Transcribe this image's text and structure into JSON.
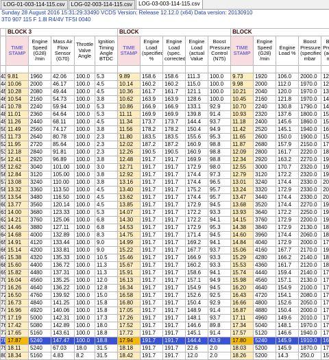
{
  "tabs": [
    "LOG-01-003-114-115.csv",
    "LOG-02-003-114-115.csv",
    "LOG-03-003-114-115.csv"
  ],
  "active_tab": 2,
  "info_line1": "Sunday 28 August 2016 15:31:29:33490 VCDS Version: Release 12.12.0 (x64) Data version: 20130910",
  "info_line2": "3T0 907 115 F   1.8l R4/4V TFSI      0040",
  "groups": [
    "BLOCK 3",
    "BLOCK",
    "BLOCK"
  ],
  "headers": [
    "TIME STAMP",
    "Engine Speed (G28) /min",
    "Mass Air Flow Sensor (G70)",
    "Throttle Valve Angle",
    "Ignition Timing Angle BTDC",
    "TIME STAMP",
    "Engine Load (specified %",
    "Engine Load (spec. corrected",
    "Engine Load (actual Value",
    "Boost Pressure Control (N75)",
    "TIME STAMP",
    "Engine Speed (G28) /min",
    "Engine Load %",
    "Boost Pressure (specified mbar",
    "Boost Pressure (actual) mbar"
  ],
  "units": [
    "",
    "",
    "",
    "",
    "",
    "",
    "",
    "",
    "",
    "",
    "",
    "",
    "",
    "",
    ""
  ],
  "first_row_number": 43,
  "selected_index": 35,
  "rows": [
    [
      "9.81",
      "1960",
      "42.06",
      "100.0",
      "5.3",
      "9.89",
      "158.6",
      "158.6",
      "111.3",
      "100.0",
      "9.73",
      "1920",
      "106.0",
      "2000.0",
      "1220.0"
    ],
    [
      "10.06",
      "2000",
      "46.17",
      "100.0",
      "4.5",
      "10.14",
      "160.2",
      "160.2",
      "115.0",
      "100.0",
      "9.98",
      "2000",
      "112.0",
      "1970.0",
      "1240.0"
    ],
    [
      "10.28",
      "2080",
      "49.44",
      "100.0",
      "4.5",
      "10.36",
      "161.7",
      "161.7",
      "121.1",
      "100.0",
      "10.21",
      "2040",
      "120.0",
      "1970.0",
      "1340.0"
    ],
    [
      "10.54",
      "2160",
      "54.73",
      "100.0",
      "3.8",
      "10.62",
      "163.9",
      "163.9",
      "128.6",
      "100.0",
      "10.45",
      "2160",
      "121.8",
      "1970.0",
      "1450.0"
    ],
    [
      "10.78",
      "2240",
      "59.94",
      "100.0",
      "5.3",
      "10.86",
      "166.9",
      "166.9",
      "133.1",
      "92.9",
      "10.70",
      "2240",
      "130.8",
      "1790.0",
      "1450.0"
    ],
    [
      "11.01",
      "2360",
      "64.64",
      "100.0",
      "5.3",
      "11.11",
      "169.9",
      "169.9",
      "139.8",
      "91.4",
      "10.93",
      "2320",
      "137.6",
      "1800.0",
      "1510.0"
    ],
    [
      "11.26",
      "2440",
      "68.11",
      "100.0",
      "4.5",
      "11.34",
      "173.7",
      "173.7",
      "144.4",
      "93.7",
      "11.18",
      "2400",
      "145.6",
      "1860.0",
      "1520.0"
    ],
    [
      "11.49",
      "2560",
      "74.17",
      "100.0",
      "3.8",
      "11.56",
      "178.2",
      "178.2",
      "150.4",
      "94.9",
      "11.42",
      "2520",
      "145.1",
      "1940.0",
      "1630.0"
    ],
    [
      "11.73",
      "2640",
      "80.78",
      "100.0",
      "2.3",
      "11.80",
      "183.5",
      "183.5",
      "155.6",
      "95.3",
      "11.65",
      "2600",
      "150.0",
      "1900.0",
      "1550.0"
    ],
    [
      "11.95",
      "2720",
      "85.64",
      "100.0",
      "2.3",
      "12.02",
      "187.2",
      "187.2",
      "160.9",
      "98.8",
      "11.87",
      "2680",
      "157.9",
      "2150.0",
      "1760.0"
    ],
    [
      "12.18",
      "2840",
      "91.81",
      "100.0",
      "2.3",
      "12.26",
      "190.5",
      "190.5",
      "160.9",
      "98.8",
      "12.09",
      "2800",
      "161.7",
      "2220.0",
      "1870.0"
    ],
    [
      "12.41",
      "2920",
      "96.89",
      "100.0",
      "3.8",
      "12.48",
      "191.7",
      "191.7",
      "169.9",
      "98.8",
      "12.34",
      "2920",
      "163.2",
      "2270.0",
      "1900.0"
    ],
    [
      "12.62",
      "3040",
      "101.00",
      "100.0",
      "3.0",
      "12.71",
      "191.7",
      "191.7",
      "172.9",
      "98.0",
      "12.55",
      "3000",
      "170.7",
      "2320.0",
      "1900.0"
    ],
    [
      "12.84",
      "3120",
      "105.00",
      "100.0",
      "3.8",
      "12.92",
      "191.7",
      "191.7",
      "174.4",
      "97.3",
      "12.79",
      "3120",
      "172.2",
      "2320.0",
      "1990.0"
    ],
    [
      "13.08",
      "3240",
      "110.00",
      "100.0",
      "3.8",
      "13.16",
      "191.7",
      "191.7",
      "174.4",
      "96.5",
      "13.01",
      "3240",
      "174.4",
      "2330.0",
      "2020.0"
    ],
    [
      "13.32",
      "3360",
      "113.50",
      "100.0",
      "4.5",
      "13.40",
      "191.7",
      "191.7",
      "175.2",
      "95.7",
      "13.24",
      "3320",
      "172.9",
      "2330.0",
      "2000.0"
    ],
    [
      "13.54",
      "3480",
      "116.50",
      "100.0",
      "4.5",
      "13.62",
      "191.7",
      "191.7",
      "174.4",
      "95.7",
      "13.47",
      "3440",
      "174.4",
      "2330.0",
      "2000.0"
    ],
    [
      "13.77",
      "3560",
      "120.14",
      "100.0",
      "4.5",
      "13.85",
      "191.7",
      "191.7",
      "172.9",
      "94.5",
      "13.68",
      "3520",
      "174.4",
      "2270.0",
      "1960.0"
    ],
    [
      "14.00",
      "3680",
      "123.33",
      "100.0",
      "5.3",
      "14.07",
      "191.7",
      "191.7",
      "172.2",
      "93.3",
      "13.93",
      "3640",
      "172.2",
      "2250.0",
      "1940.0"
    ],
    [
      "14.21",
      "3760",
      "125.06",
      "100.0",
      "6.8",
      "14.30",
      "191.7",
      "191.7",
      "172.2",
      "94.1",
      "14.15",
      "3760",
      "172.9",
      "2200.0",
      "1900.0"
    ],
    [
      "14.46",
      "3880",
      "127.11",
      "100.0",
      "6.8",
      "14.53",
      "191.7",
      "191.7",
      "172.9",
      "95.3",
      "14.38",
      "3840",
      "172.9",
      "2130.0",
      "1800.0"
    ],
    [
      "14.68",
      "4000",
      "132.89",
      "100.0",
      "8.3",
      "14.75",
      "191.7",
      "191.7",
      "171.4",
      "94.5",
      "14.60",
      "3960",
      "174.4",
      "2060.0",
      "1800.0"
    ],
    [
      "14.91",
      "4120",
      "133.44",
      "100.0",
      "9.0",
      "14.99",
      "191.7",
      "191.7",
      "169.2",
      "94.1",
      "14.84",
      "4040",
      "172.9",
      "2000.0",
      "1740.0"
    ],
    [
      "15.14",
      "4200",
      "133.81",
      "100.0",
      "9.0",
      "15.22",
      "191.7",
      "191.7",
      "167.7",
      "93.7",
      "15.06",
      "4160",
      "167.7",
      "2170.0",
      "1900.0"
    ],
    [
      "15.38",
      "4320",
      "135.33",
      "100.0",
      "10.5",
      "15.46",
      "191.7",
      "191.7",
      "166.9",
      "93.3",
      "15.29",
      "4280",
      "166.2",
      "2140.0",
      "1860.0"
    ],
    [
      "15.60",
      "4400",
      "136.72",
      "100.0",
      "11.3",
      "15.67",
      "191.7",
      "191.7",
      "160.2",
      "93.3",
      "15.53",
      "4360",
      "161.7",
      "2120.0",
      "1830.0"
    ],
    [
      "15.82",
      "4480",
      "137.31",
      "100.0",
      "11.3",
      "15.91",
      "191.7",
      "191.7",
      "158.6",
      "94.1",
      "15.74",
      "4440",
      "159.4",
      "2140.0",
      "1790.0"
    ],
    [
      "16.04",
      "4560",
      "135.25",
      "100.0",
      "12.0",
      "16.13",
      "191.7",
      "191.7",
      "157.1",
      "94.9",
      "15.98",
      "4560",
      "157.1",
      "2130.0",
      "1790.0"
    ],
    [
      "16.26",
      "4640",
      "136.22",
      "100.0",
      "12.8",
      "16.34",
      "191.7",
      "191.7",
      "154.9",
      "94.5",
      "16.20",
      "4640",
      "154.9",
      "2100.0",
      "1770.0"
    ],
    [
      "16.50",
      "4760",
      "139.92",
      "100.0",
      "15.0",
      "16.58",
      "191.7",
      "191.7",
      "152.6",
      "92.5",
      "16.43",
      "4720",
      "154.1",
      "2080.0",
      "1740.0"
    ],
    [
      "16.73",
      "4840",
      "141.25",
      "100.0",
      "15.8",
      "16.80",
      "191.7",
      "191.7",
      "150.4",
      "92.9",
      "16.66",
      "4800",
      "152.6",
      "2050.0",
      "1740.0"
    ],
    [
      "16.96",
      "4920",
      "140.06",
      "100.0",
      "15.8",
      "17.05",
      "191.7",
      "191.7",
      "148.9",
      "91.4",
      "16.87",
      "4880",
      "150.4",
      "2000.0",
      "1770.0"
    ],
    [
      "17.19",
      "5000",
      "142.31",
      "100.0",
      "17.3",
      "17.26",
      "191.7",
      "191.7",
      "148.1",
      "93.7",
      "17.11",
      "4960",
      "149.6",
      "2010.0",
      "1700.0"
    ],
    [
      "17.42",
      "5080",
      "142.89",
      "100.0",
      "18.0",
      "17.52",
      "191.7",
      "191.7",
      "146.6",
      "89.8",
      "17.34",
      "5040",
      "148.1",
      "1970.0",
      "1730.0"
    ],
    [
      "17.65",
      "5160",
      "143.61",
      "100.0",
      "18.8",
      "17.72",
      "191.7",
      "191.7",
      "145.1",
      "91.4",
      "17.57",
      "5120",
      "146.6",
      "1940.0",
      "1740.0"
    ],
    [
      "17.87",
      "5240",
      "147.47",
      "100.0",
      "18.8",
      "17.94",
      "191.7",
      "191.7",
      "144.4",
      "43.9",
      "17.80",
      "5240",
      "145.9",
      "1910.0",
      "1670.0"
    ],
    [
      "18.11",
      "5240",
      "67.03",
      "18.0",
      "31.5",
      "18.18",
      "191.7",
      "191.7",
      "22.6",
      "2.0",
      "18.03",
      "5200",
      "145.9",
      "1870.0",
      "1700.0"
    ],
    [
      "18.34",
      "5160",
      "4.83",
      "8.2",
      "31.5",
      "18.42",
      "191.7",
      "191.7",
      "12.0",
      "2.0",
      "18.26",
      "5200",
      "14.3",
      "250.0",
      "1540.0"
    ]
  ]
}
